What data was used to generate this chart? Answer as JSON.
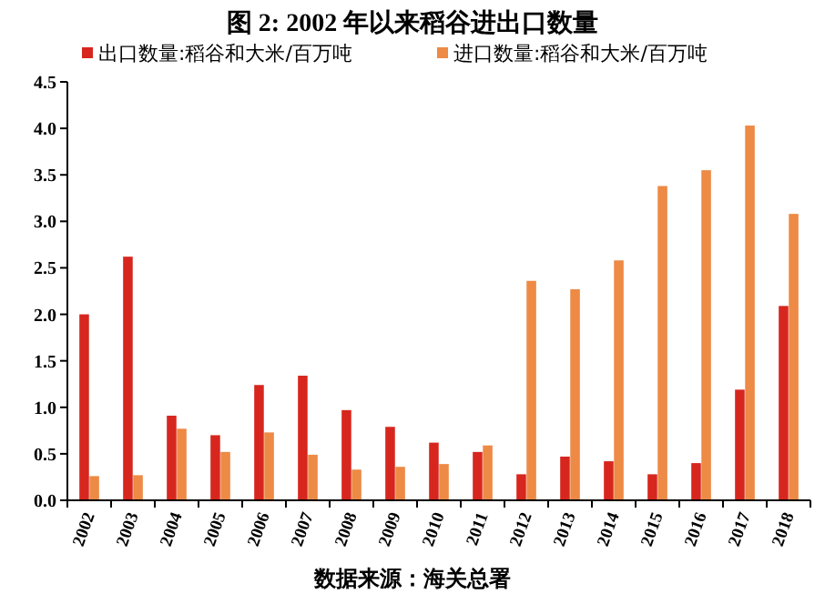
{
  "chart_data": {
    "type": "bar",
    "title": "图 2: 2002 年以来稻谷进出口数量",
    "categories": [
      "2002",
      "2003",
      "2004",
      "2005",
      "2006",
      "2007",
      "2008",
      "2009",
      "2010",
      "2011",
      "2012",
      "2013",
      "2014",
      "2015",
      "2016",
      "2017",
      "2018"
    ],
    "series": [
      {
        "name": "出口数量:稻谷和大米/百万吨",
        "color": "#d7261e",
        "values": [
          2.0,
          2.62,
          0.91,
          0.7,
          1.24,
          1.34,
          0.97,
          0.79,
          0.62,
          0.52,
          0.28,
          0.47,
          0.42,
          0.28,
          0.4,
          1.19,
          2.09
        ]
      },
      {
        "name": "进口数量:稻谷和大米/百万吨",
        "color": "#ed8a45",
        "values": [
          0.26,
          0.27,
          0.77,
          0.52,
          0.73,
          0.49,
          0.33,
          0.36,
          0.39,
          0.59,
          2.36,
          2.27,
          2.58,
          3.38,
          3.55,
          4.03,
          3.08
        ]
      }
    ],
    "ylim": [
      0,
      4.5
    ],
    "yticks": [
      {
        "value": 0,
        "label": "0.0"
      },
      0.5,
      {
        "value": 1,
        "label": "1.0"
      },
      1.5,
      {
        "value": 2,
        "label": "2.0"
      },
      2.5,
      {
        "value": 3,
        "label": "3.0"
      },
      3.5,
      {
        "value": 4,
        "label": "4.0"
      },
      4.5
    ],
    "legend": "top",
    "grid": false,
    "annotations": [
      "数据来源：海关总署"
    ]
  }
}
